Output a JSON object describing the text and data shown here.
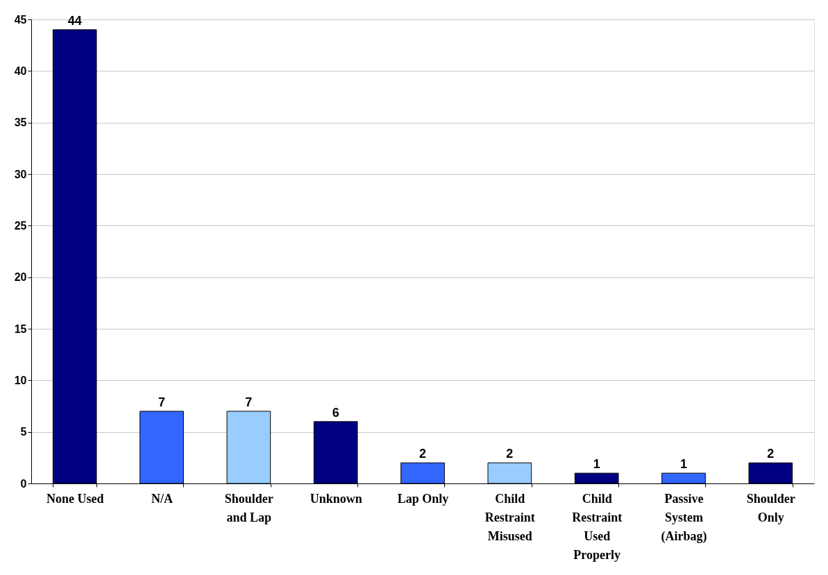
{
  "chart_data": {
    "type": "bar",
    "categories": [
      "None Used",
      "N/A",
      "Shoulder and Lap",
      "Unknown",
      "Lap Only",
      "Child Restraint Misused",
      "Child Restraint Used Properly",
      "Passive System (Airbag)",
      "Shoulder Only"
    ],
    "values": [
      44,
      7,
      7,
      6,
      2,
      2,
      1,
      1,
      2
    ],
    "colors": [
      "#000080",
      "#3366ff",
      "#99ccff",
      "#000080",
      "#3366ff",
      "#99ccff",
      "#000080",
      "#3366ff",
      "#000080"
    ],
    "ylim": [
      0,
      45
    ],
    "yticks": [
      0,
      5,
      10,
      15,
      20,
      25,
      30,
      35,
      40,
      45
    ],
    "grid": "y",
    "data_labels": true
  }
}
